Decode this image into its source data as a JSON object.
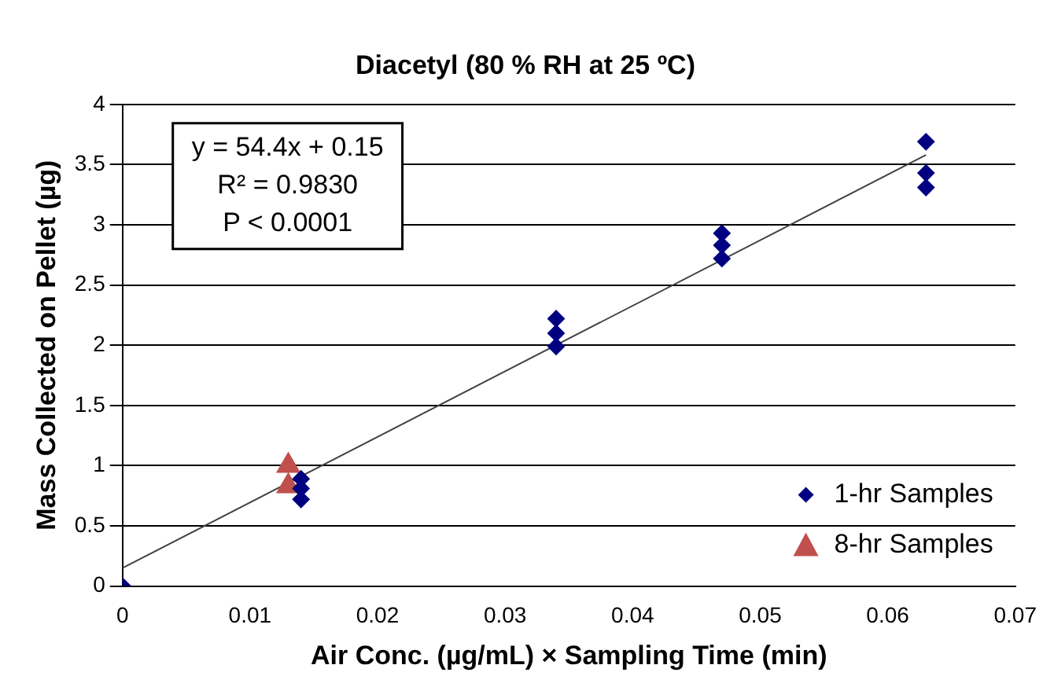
{
  "chart_data": {
    "type": "scatter",
    "title": "Diacetyl (80 % RH at 25 ºC)",
    "xlabel": "Air Conc. (µg/mL) × Sampling Time (min)",
    "ylabel": "Mass Collected on Pellet (µg)",
    "series": [
      {
        "name": "1-hr Samples",
        "color": "#000080",
        "marker": "diamond",
        "x": [
          0,
          0.014,
          0.014,
          0.014,
          0.034,
          0.034,
          0.034,
          0.047,
          0.047,
          0.047,
          0.063,
          0.063,
          0.063
        ],
        "values": [
          0,
          0.89,
          0.81,
          0.72,
          2.22,
          2.1,
          1.99,
          2.93,
          2.83,
          2.72,
          3.69,
          3.43,
          3.31
        ]
      },
      {
        "name": "8-hr Samples",
        "color": "#c0504d",
        "marker": "triangle",
        "x": [
          0.013,
          0.013
        ],
        "values": [
          1.0,
          0.83
        ]
      },
      {
        "type": "line",
        "color": "#404040",
        "marker": "none",
        "x": [
          0,
          0.063
        ],
        "values": [
          0.15,
          3.58
        ]
      }
    ],
    "xlim": [
      0,
      0.07
    ],
    "xticks": [
      0,
      0.01,
      0.02,
      0.03,
      0.04,
      0.05,
      0.06,
      0.07
    ],
    "ylim": [
      0,
      4
    ],
    "yticks": [
      0,
      0.5,
      1,
      1.5,
      2,
      2.5,
      3,
      3.5,
      4
    ],
    "grid": "y",
    "legend": "bottom right",
    "annotations": [
      "y = 54.4x + 0.15",
      "R² = 0.9830",
      "P < 0.0001"
    ]
  }
}
